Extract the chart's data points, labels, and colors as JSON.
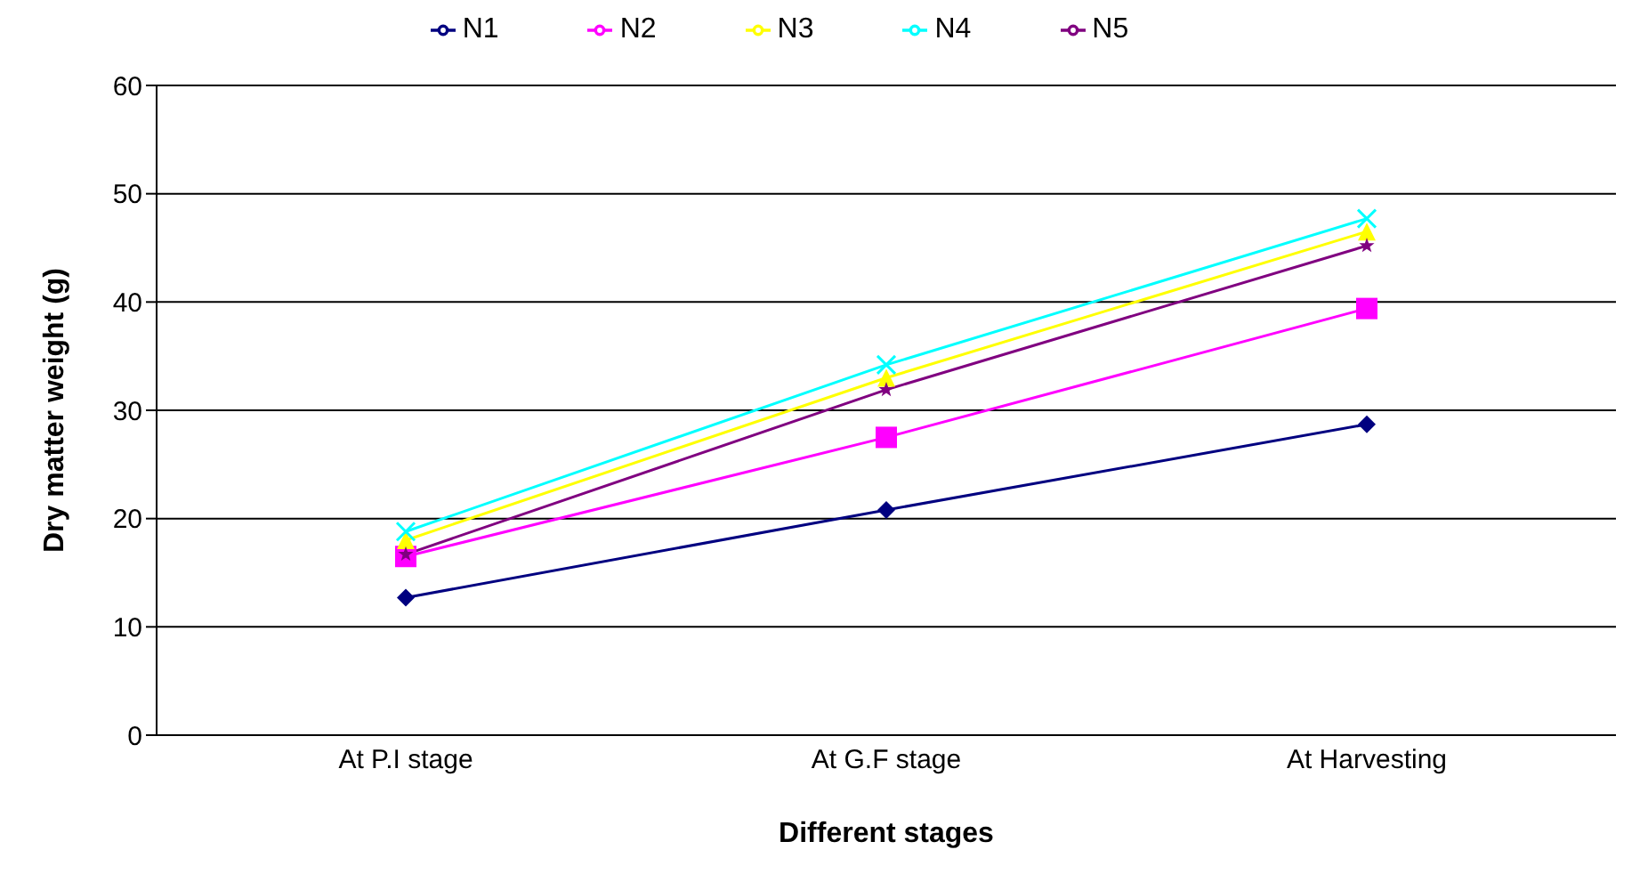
{
  "chart_data": {
    "type": "line",
    "xlabel": "Different stages",
    "ylabel": "Dry matter weight (g)",
    "categories": [
      "At P.I stage",
      "At G.F stage",
      "At Harvesting"
    ],
    "series": [
      {
        "name": "N1",
        "color": "#000080",
        "marker": "diamond",
        "values": [
          12.7,
          20.8,
          28.7
        ]
      },
      {
        "name": "N2",
        "color": "#ff00ff",
        "marker": "square",
        "values": [
          16.5,
          27.5,
          39.4
        ]
      },
      {
        "name": "N3",
        "color": "#ffff00",
        "marker": "triangle",
        "values": [
          18.0,
          33.0,
          46.5
        ]
      },
      {
        "name": "N4",
        "color": "#00ffff",
        "marker": "cross",
        "values": [
          18.8,
          34.2,
          47.7
        ]
      },
      {
        "name": "N5",
        "color": "#800080",
        "marker": "star",
        "values": [
          16.7,
          31.9,
          45.2
        ]
      }
    ],
    "ylim": [
      0,
      60
    ],
    "yticks": [
      0,
      10,
      20,
      30,
      40,
      50,
      60
    ],
    "grid": "y",
    "legend": "top"
  }
}
